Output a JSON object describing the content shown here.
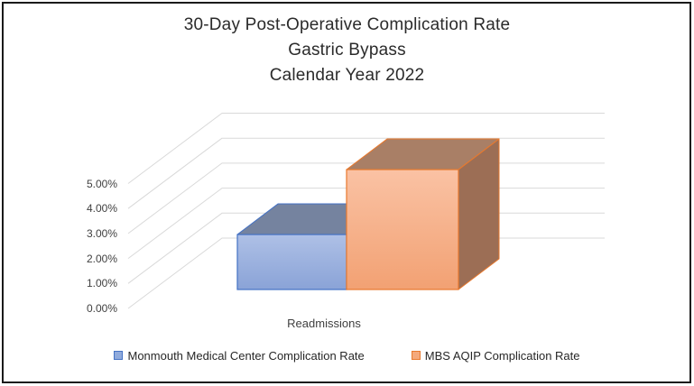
{
  "title": {
    "line1": "30-Day Post-Operative Complication Rate",
    "line2": "Gastric Bypass",
    "line3": "Calendar Year 2022"
  },
  "chart_data": {
    "type": "bar",
    "projection": "3d-column",
    "title": "30-Day Post-Operative Complication Rate, Gastric Bypass, Calendar Year 2022",
    "categories": [
      "Readmissions"
    ],
    "series": [
      {
        "name": "Monmouth Medical Center Complication Rate",
        "values": [
          2.2
        ]
      },
      {
        "name": "MBS AQIP Complication Rate",
        "values": [
          4.8
        ]
      }
    ],
    "unit": "%",
    "ylim": [
      0,
      5
    ],
    "ytick_step": 1,
    "ytick_labels": [
      "0.00%",
      "1.00%",
      "2.00%",
      "3.00%",
      "4.00%",
      "5.00%"
    ],
    "grid": true,
    "legend_position": "bottom",
    "colors": {
      "gridline": "#D9D9D9",
      "axis_text": "#404040",
      "title_text": "#2B2B2B",
      "frame_border": "#1A1A1A",
      "series": [
        {
          "front_top": "#AEC0E6",
          "front_bottom": "#8AA3D7",
          "top": "#75839F",
          "border": "#4472C4",
          "legend_fill": "#8FAADC"
        },
        {
          "front_top": "#FAC2A4",
          "front_bottom": "#F2A173",
          "top": "#A97F66",
          "side": "#9C6E55",
          "border": "#E8792E",
          "legend_fill": "#F4A97C"
        }
      ]
    }
  }
}
